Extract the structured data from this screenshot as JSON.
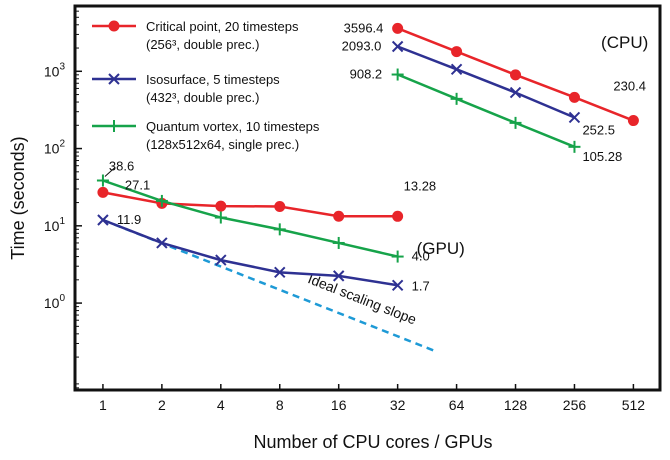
{
  "chart_data": {
    "type": "line",
    "xlabel": "Number of CPU cores / GPUs",
    "ylabel": "Time (seconds)",
    "x_scale": "log2",
    "y_scale": "log10",
    "x_ticks": [
      1,
      2,
      4,
      8,
      16,
      32,
      64,
      128,
      256,
      512
    ],
    "x_tick_labels": [
      "1",
      "2",
      "4",
      "8",
      "16",
      "32",
      "64",
      "128",
      "256",
      "512"
    ],
    "y_ticks": [
      1,
      10,
      100,
      1000
    ],
    "y_tick_labels": [
      {
        "base": "10",
        "exp": "0"
      },
      {
        "base": "10",
        "exp": "1"
      },
      {
        "base": "10",
        "exp": "2"
      },
      {
        "base": "10",
        "exp": "3"
      }
    ],
    "xlim": [
      0.72,
      700
    ],
    "ylim": [
      0.075,
      7000
    ],
    "grid": false,
    "legend_position": "top-left",
    "region_labels": [
      {
        "text": "(CPU)",
        "x": 350,
        "y": 2000
      },
      {
        "text": "(GPU)",
        "x": 40,
        "y": 4.3
      }
    ],
    "legend": [
      {
        "name": "Critical point, 20 timesteps",
        "note": "(256³, double prec.)",
        "color": "#e8252a",
        "marker": "circle"
      },
      {
        "name": "Isosurface, 5 timesteps",
        "note": "(432³, double prec.)",
        "color": "#2e3192",
        "marker": "x"
      },
      {
        "name": "Quantum vortex, 10 timesteps",
        "note": "(128x512x64, single prec.)",
        "color": "#16a34a",
        "marker": "plus"
      }
    ],
    "series": [
      {
        "group": "GPU",
        "legend_index": 0,
        "color": "#e8252a",
        "marker": "circle",
        "x": [
          1,
          2,
          4,
          8,
          16,
          32
        ],
        "values": [
          27.1,
          19.5,
          18.0,
          17.8,
          13.3,
          13.28
        ]
      },
      {
        "group": "GPU",
        "legend_index": 1,
        "color": "#2e3192",
        "marker": "x",
        "x": [
          1,
          2,
          4,
          8,
          16,
          32
        ],
        "values": [
          11.9,
          6.0,
          3.6,
          2.5,
          2.25,
          1.7
        ]
      },
      {
        "group": "GPU",
        "legend_index": 2,
        "color": "#16a34a",
        "marker": "plus",
        "x": [
          1,
          2,
          4,
          8,
          16,
          32
        ],
        "values": [
          38.6,
          21.0,
          12.8,
          9.0,
          6.0,
          4.0
        ]
      },
      {
        "group": "CPU",
        "legend_index": 0,
        "color": "#e8252a",
        "marker": "circle",
        "x": [
          32,
          64,
          128,
          256,
          512
        ],
        "values": [
          3596.4,
          1800,
          900,
          460,
          230.4
        ]
      },
      {
        "group": "CPU",
        "legend_index": 1,
        "color": "#2e3192",
        "marker": "x",
        "x": [
          32,
          64,
          128,
          256
        ],
        "values": [
          2093.0,
          1060,
          530,
          252.5
        ]
      },
      {
        "group": "CPU",
        "legend_index": 2,
        "color": "#16a34a",
        "marker": "plus",
        "x": [
          32,
          64,
          128,
          256
        ],
        "values": [
          908.2,
          440,
          215,
          105.28
        ]
      }
    ],
    "ideal_scaling": {
      "label": "Ideal scaling slope",
      "color": "#1e9ad6",
      "x": [
        1,
        50
      ],
      "values": [
        11.9,
        0.238
      ]
    },
    "data_labels": [
      {
        "text": "38.6",
        "x": 1,
        "y": 38.6,
        "dx": 6,
        "dy": -10
      },
      {
        "text": "27.1",
        "x": 1,
        "y": 27.1,
        "dx": 22,
        "dy": -3
      },
      {
        "text": "11.9",
        "x": 1,
        "y": 11.9,
        "dx": 14,
        "dy": 4
      },
      {
        "text": "13.28",
        "x": 32,
        "y": 13.28,
        "dx": 6,
        "dy": -26
      },
      {
        "text": "4.0",
        "x": 32,
        "y": 4.0,
        "dx": 14,
        "dy": 4
      },
      {
        "text": "1.7",
        "x": 32,
        "y": 1.7,
        "dx": 14,
        "dy": 5
      },
      {
        "text": "3596.4",
        "x": 32,
        "y": 3596.4,
        "dx": -54,
        "dy": 4
      },
      {
        "text": "2093.0",
        "x": 32,
        "y": 2093.0,
        "dx": -56,
        "dy": 4
      },
      {
        "text": "908.2",
        "x": 32,
        "y": 908.2,
        "dx": -48,
        "dy": 4
      },
      {
        "text": "230.4",
        "x": 512,
        "y": 230.4,
        "dx": -20,
        "dy": -30
      },
      {
        "text": "252.5",
        "x": 256,
        "y": 252.5,
        "dx": 8,
        "dy": 17
      },
      {
        "text": "105.28",
        "x": 256,
        "y": 105.28,
        "dx": 8,
        "dy": 14
      }
    ]
  }
}
